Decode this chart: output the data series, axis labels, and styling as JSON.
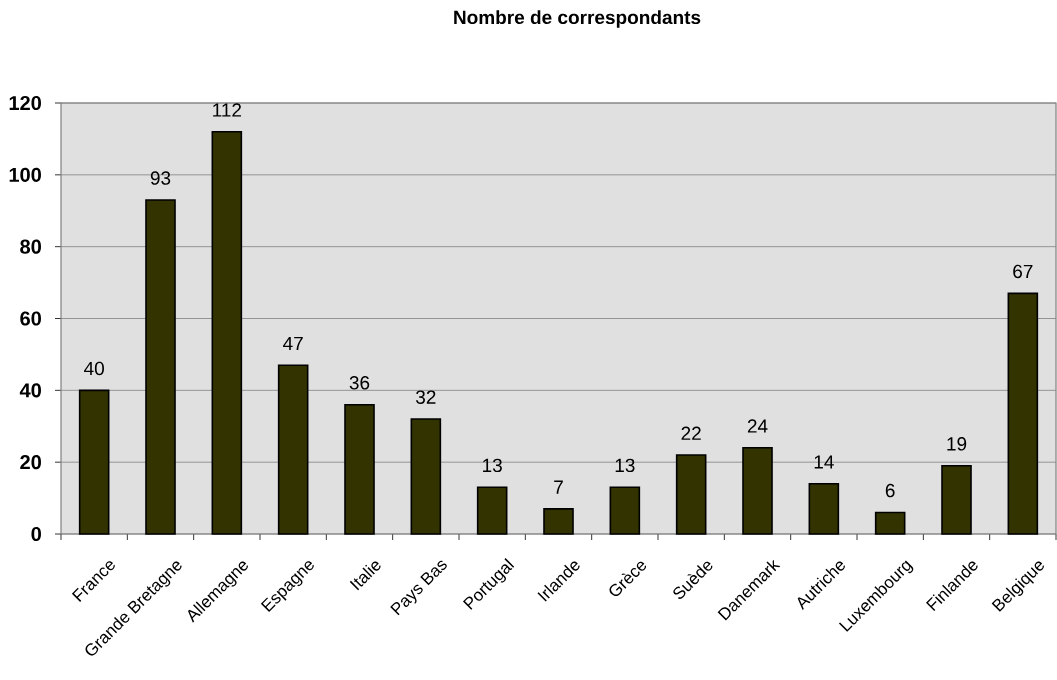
{
  "chart_data": {
    "type": "bar",
    "title": "Nombre de correspondants",
    "categories": [
      "France",
      "Grande Bretagne",
      "Allemagne",
      "Espagne",
      "Italie",
      "Pays Bas",
      "Portugal",
      "Irlande",
      "Grèce",
      "Suède",
      "Danemark",
      "Autriche",
      "Luxembourg",
      "Finlande",
      "Belgique"
    ],
    "values": [
      40,
      93,
      112,
      47,
      36,
      32,
      13,
      7,
      13,
      22,
      24,
      14,
      6,
      19,
      67
    ],
    "color": "#333300",
    "ylim": [
      0,
      120
    ],
    "yticks": [
      0,
      20,
      40,
      60,
      80,
      100,
      120
    ],
    "grid": "y",
    "data_labels": true
  }
}
